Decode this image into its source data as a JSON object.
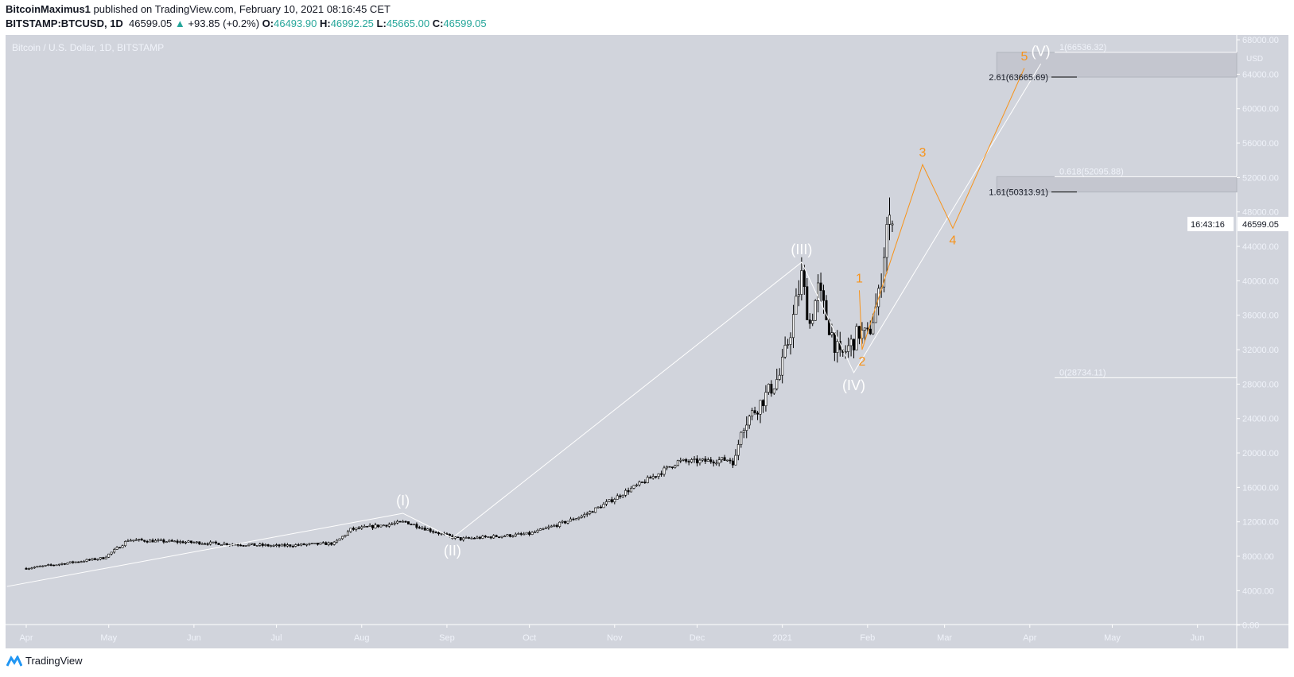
{
  "header": {
    "author": "BitcoinMaximus1",
    "published_text": "published on TradingView.com, February 10, 2021 08:16:45 CET",
    "symbol": "BITSTAMP:BTCUSD, 1D",
    "last": "46599.05",
    "change": "+93.85 (+0.2%)",
    "o_label": "O:",
    "o": "46493.90",
    "h_label": "H:",
    "h": "46992.25",
    "l_label": "L:",
    "l": "45665.00",
    "c_label": "C:",
    "c": "46599.05",
    "up_color": "#26a69a"
  },
  "footer": {
    "brand": "TradingView",
    "logo_icon": "tradingview-logo-icon"
  },
  "chart_data": {
    "type": "candlestick",
    "title": "Bitcoin / U.S. Dollar, 1D, BITSTAMP",
    "currency": "USD",
    "ylim": [
      0,
      68000
    ],
    "y_ticks": [
      "68000.00",
      "64000.00",
      "60000.00",
      "56000.00",
      "52000.00",
      "48000.00",
      "44000.00",
      "40000.00",
      "36000.00",
      "32000.00",
      "28000.00",
      "24000.00",
      "20000.00",
      "16000.00",
      "12000.00",
      "8000.00",
      "4000.00",
      "0.00"
    ],
    "x_ticks": [
      {
        "label": "Apr",
        "date": "2020-04-01"
      },
      {
        "label": "May",
        "date": "2020-05-01"
      },
      {
        "label": "Jun",
        "date": "2020-06-01"
      },
      {
        "label": "Jul",
        "date": "2020-07-01"
      },
      {
        "label": "Aug",
        "date": "2020-08-01"
      },
      {
        "label": "Sep",
        "date": "2020-09-01"
      },
      {
        "label": "Oct",
        "date": "2020-10-01"
      },
      {
        "label": "Nov",
        "date": "2020-11-01"
      },
      {
        "label": "Dec",
        "date": "2020-12-01"
      },
      {
        "label": "2021",
        "date": "2021-01-01"
      },
      {
        "label": "Feb",
        "date": "2021-02-01"
      },
      {
        "label": "Mar",
        "date": "2021-03-01"
      },
      {
        "label": "Apr",
        "date": "2021-04-01"
      },
      {
        "label": "May",
        "date": "2021-05-01"
      },
      {
        "label": "Jun",
        "date": "2021-06-01"
      }
    ],
    "xlim": [
      "2020-03-29",
      "2021-06-30"
    ],
    "price_path_approx": [
      [
        "2020-04-01",
        6600
      ],
      [
        "2020-04-29",
        7800
      ],
      [
        "2020-05-08",
        9900
      ],
      [
        "2020-06-01",
        9600
      ],
      [
        "2020-07-01",
        9200
      ],
      [
        "2020-07-22",
        9500
      ],
      [
        "2020-07-28",
        11100
      ],
      [
        "2020-08-17",
        12000
      ],
      [
        "2020-09-03",
        10200
      ],
      [
        "2020-09-06",
        10000
      ],
      [
        "2020-10-01",
        10600
      ],
      [
        "2020-10-21",
        12800
      ],
      [
        "2020-11-05",
        15500
      ],
      [
        "2020-11-24",
        19000
      ],
      [
        "2020-12-01",
        19000
      ],
      [
        "2020-12-15",
        19300
      ],
      [
        "2020-12-17",
        23000
      ],
      [
        "2020-12-31",
        29000
      ],
      [
        "2021-01-08",
        40500
      ],
      [
        "2021-01-11",
        35000
      ],
      [
        "2021-01-14",
        39000
      ],
      [
        "2021-01-22",
        31000
      ],
      [
        "2021-01-29",
        34000
      ],
      [
        "2021-02-01",
        33500
      ],
      [
        "2021-02-05",
        38000
      ],
      [
        "2021-02-08",
        46500
      ],
      [
        "2021-02-10",
        46599.05
      ]
    ],
    "last_price": "46599.05",
    "countdown": "16:43:16",
    "wave_degree_primary": {
      "color": "#ffffff",
      "points": [
        [
          "2020-03-25",
          4490
        ],
        [
          "2020-08-16",
          12990
        ],
        [
          "2020-09-03",
          10126
        ],
        [
          "2021-01-08",
          42150
        ],
        [
          "2021-01-27",
          29330
        ],
        [
          "2021-04-05",
          65200
        ]
      ],
      "labels": [
        {
          "text": "(I)",
          "point": 1,
          "position": "above"
        },
        {
          "text": "(II)",
          "point": 2,
          "position": "below"
        },
        {
          "text": "(III)",
          "point": 3,
          "position": "above"
        },
        {
          "text": "(IV)",
          "point": 4,
          "position": "below"
        },
        {
          "text": "(V)",
          "point": 5,
          "position": "above"
        }
      ]
    },
    "wave_degree_minor": {
      "color": "#f7931a",
      "points": [
        [
          "2021-01-29",
          38900
        ],
        [
          "2021-01-30",
          32000
        ],
        [
          "2021-02-08",
          41000
        ],
        [
          "2021-02-21",
          53500
        ],
        [
          "2021-03-04",
          46100
        ],
        [
          "2021-03-30",
          64700
        ]
      ],
      "labels": [
        {
          "text": "1",
          "point": 0,
          "position": "above"
        },
        {
          "text": "2",
          "point": 1,
          "position": "below"
        },
        {
          "text": "3",
          "point": 3,
          "position": "above"
        },
        {
          "text": "4",
          "point": 4,
          "position": "below"
        },
        {
          "text": "5",
          "point": 5,
          "position": "above"
        }
      ]
    },
    "fib_levels": [
      {
        "label": "1(66536.32)",
        "price": 66536.32,
        "color": "#ffffff"
      },
      {
        "label": "2.61(63665.69)",
        "price": 63665.69,
        "color": "#000000"
      },
      {
        "label": "0.618(52095.88)",
        "price": 52095.88,
        "color": "#ffffff"
      },
      {
        "label": "1.61(50313.91)",
        "price": 50313.91,
        "color": "#000000"
      },
      {
        "label": "0(28734.11)",
        "price": 28734.11,
        "color": "#ffffff"
      }
    ],
    "zones": [
      [
        63665.69,
        66536.32
      ],
      [
        50313.91,
        52095.88
      ]
    ],
    "background": "#d1d4dc",
    "grid": false,
    "legend": "none"
  }
}
